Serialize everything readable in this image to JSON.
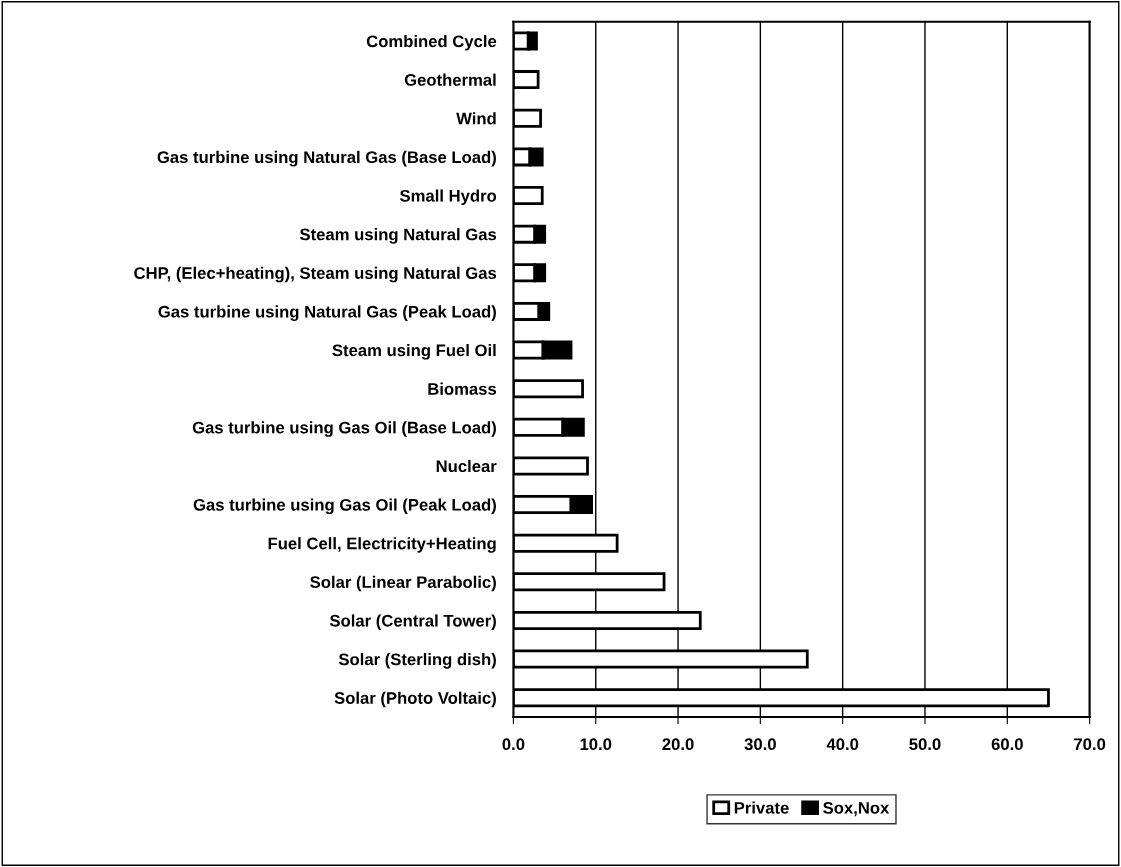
{
  "chart_data": {
    "type": "bar",
    "orientation": "horizontal",
    "stacked": true,
    "categories": [
      "Combined Cycle",
      "Geothermal",
      "Wind",
      "Gas turbine using Natural Gas (Base Load)",
      "Small Hydro",
      "Steam using Natural Gas",
      "CHP, (Elec+heating), Steam using Natural Gas",
      "Gas turbine using Natural Gas (Peak Load)",
      "Steam using Fuel Oil",
      "Biomass",
      "Gas turbine using Gas Oil (Base Load)",
      "Nuclear",
      "Gas turbine using Gas Oil (Peak Load)",
      "Fuel Cell, Electricity+Heating",
      "Solar (Linear Parabolic)",
      "Solar (Central Tower)",
      "Solar (Sterling dish)",
      "Solar (Photo Voltaic)"
    ],
    "series": [
      {
        "name": "Private",
        "color": "#ffffff",
        "values": [
          1.8,
          3.0,
          3.3,
          2.0,
          3.5,
          2.6,
          2.6,
          3.1,
          3.6,
          8.4,
          6.0,
          9.0,
          7.0,
          12.6,
          18.3,
          22.7,
          35.7,
          65.0
        ]
      },
      {
        "name": "Sox,Nox",
        "color": "#000000",
        "values": [
          1.0,
          null,
          null,
          1.5,
          null,
          1.2,
          1.2,
          1.2,
          3.4,
          null,
          2.5,
          null,
          2.5,
          null,
          null,
          null,
          null,
          null
        ]
      }
    ],
    "xlim": [
      0,
      70
    ],
    "xticks": [
      {
        "value": 0,
        "label": "0.0"
      },
      {
        "value": 10,
        "label": "10.0"
      },
      {
        "value": 20,
        "label": "20.0"
      },
      {
        "value": 30,
        "label": "30.0"
      },
      {
        "value": 40,
        "label": "40.0"
      },
      {
        "value": 50,
        "label": "50.0"
      },
      {
        "value": 60,
        "label": "60.0"
      },
      {
        "value": 70,
        "label": "70.0"
      }
    ],
    "grid": "x",
    "legend": "bottom"
  }
}
